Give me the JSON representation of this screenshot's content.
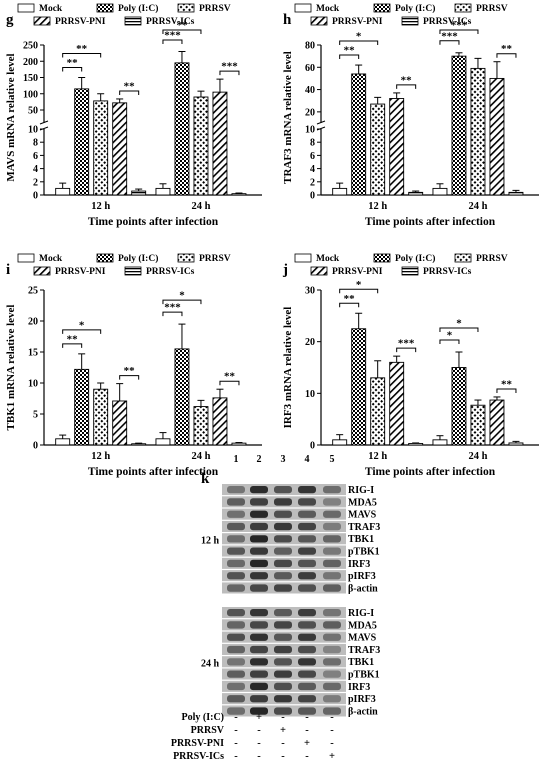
{
  "legend": [
    "Mock",
    "Poly (I:C)",
    "PRRSV",
    "PRRSV-PNI",
    "PRRSV-ICs"
  ],
  "xlabel": "Time points after infection",
  "chart_data": [
    {
      "panel": "g",
      "type": "bar",
      "ylabel": "MAVS mRNA relative level",
      "categories": [
        "12 h",
        "24 h"
      ],
      "broken_axis": true,
      "ylim_lower": [
        0,
        10
      ],
      "ylim_upper": [
        10,
        250
      ],
      "yticks_lower": [
        "0",
        "2",
        "4",
        "6",
        "8",
        "10"
      ],
      "yticks_upper": [
        "50",
        "100",
        "150",
        "200",
        "250"
      ],
      "series": [
        {
          "name": "Mock",
          "values": [
            1.0,
            1.0
          ],
          "errors": [
            0.8,
            0.7
          ]
        },
        {
          "name": "Poly (I:C)",
          "values": [
            115,
            195
          ],
          "errors": [
            35,
            35
          ]
        },
        {
          "name": "PRRSV",
          "values": [
            78,
            90
          ],
          "errors": [
            22,
            18
          ]
        },
        {
          "name": "PRRSV-PNI",
          "values": [
            72,
            105
          ],
          "errors": [
            12,
            40
          ]
        },
        {
          "name": "PRRSV-ICs",
          "values": [
            0.6,
            0.2
          ],
          "errors": [
            0.3,
            0.1
          ]
        }
      ],
      "annotations": [
        {
          "group": 0,
          "label": "**",
          "from": 0,
          "to": 1
        },
        {
          "group": 0,
          "label": "**",
          "from": 0,
          "to": 2
        },
        {
          "group": 0,
          "label": "**",
          "from": 3,
          "to": 4
        },
        {
          "group": 1,
          "label": "***",
          "from": 0,
          "to": 1
        },
        {
          "group": 1,
          "label": "**",
          "from": 0,
          "to": 2
        },
        {
          "group": 1,
          "label": "***",
          "from": 3,
          "to": 4
        }
      ]
    },
    {
      "panel": "h",
      "type": "bar",
      "ylabel": "TRAF3 mRNA relative level",
      "categories": [
        "12 h",
        "24 h"
      ],
      "broken_axis": true,
      "ylim_lower": [
        0,
        10
      ],
      "ylim_upper": [
        10,
        80
      ],
      "yticks_lower": [
        "0",
        "2",
        "4",
        "6",
        "8",
        "10"
      ],
      "yticks_upper": [
        "20",
        "40",
        "60",
        "80"
      ],
      "series": [
        {
          "name": "Mock",
          "values": [
            1.0,
            1.0
          ],
          "errors": [
            0.8,
            0.7
          ]
        },
        {
          "name": "Poly (I:C)",
          "values": [
            54,
            70
          ],
          "errors": [
            8,
            3
          ]
        },
        {
          "name": "PRRSV",
          "values": [
            27,
            59
          ],
          "errors": [
            6,
            9
          ]
        },
        {
          "name": "PRRSV-PNI",
          "values": [
            32,
            50
          ],
          "errors": [
            5,
            15
          ]
        },
        {
          "name": "PRRSV-ICs",
          "values": [
            0.4,
            0.4
          ],
          "errors": [
            0.2,
            0.3
          ]
        }
      ],
      "annotations": [
        {
          "group": 0,
          "label": "**",
          "from": 0,
          "to": 1
        },
        {
          "group": 0,
          "label": "*",
          "from": 0,
          "to": 2
        },
        {
          "group": 0,
          "label": "**",
          "from": 3,
          "to": 4
        },
        {
          "group": 1,
          "label": "***",
          "from": 0,
          "to": 1
        },
        {
          "group": 1,
          "label": "***",
          "from": 0,
          "to": 2
        },
        {
          "group": 1,
          "label": "**",
          "from": 3,
          "to": 4
        }
      ]
    },
    {
      "panel": "i",
      "type": "bar",
      "ylabel": "TBK1 mRNA relative level",
      "categories": [
        "12 h",
        "24 h"
      ],
      "broken_axis": false,
      "ylim": [
        0,
        25
      ],
      "yticks": [
        "0",
        "5",
        "10",
        "15",
        "20",
        "25"
      ],
      "series": [
        {
          "name": "Mock",
          "values": [
            1.0,
            1.0
          ],
          "errors": [
            0.6,
            1.0
          ]
        },
        {
          "name": "Poly (I:C)",
          "values": [
            12.2,
            15.5
          ],
          "errors": [
            2.5,
            4.0
          ]
        },
        {
          "name": "PRRSV",
          "values": [
            9.0,
            6.2
          ],
          "errors": [
            1.0,
            1.0
          ]
        },
        {
          "name": "PRRSV-PNI",
          "values": [
            7.1,
            7.6
          ],
          "errors": [
            2.8,
            1.4
          ]
        },
        {
          "name": "PRRSV-ICs",
          "values": [
            0.2,
            0.3
          ],
          "errors": [
            0.1,
            0.1
          ]
        }
      ],
      "annotations": [
        {
          "group": 0,
          "label": "**",
          "from": 0,
          "to": 1
        },
        {
          "group": 0,
          "label": "*",
          "from": 0,
          "to": 2
        },
        {
          "group": 0,
          "label": "**",
          "from": 3,
          "to": 4
        },
        {
          "group": 1,
          "label": "***",
          "from": 0,
          "to": 1
        },
        {
          "group": 1,
          "label": "*",
          "from": 0,
          "to": 2
        },
        {
          "group": 1,
          "label": "**",
          "from": 3,
          "to": 4
        }
      ]
    },
    {
      "panel": "j",
      "type": "bar",
      "ylabel": "IRF3 mRNA relative level",
      "categories": [
        "12 h",
        "24 h"
      ],
      "broken_axis": false,
      "ylim": [
        0,
        30
      ],
      "yticks": [
        "0",
        "10",
        "20",
        "30"
      ],
      "series": [
        {
          "name": "Mock",
          "values": [
            1.0,
            1.0
          ],
          "errors": [
            1.0,
            0.8
          ]
        },
        {
          "name": "Poly (I:C)",
          "values": [
            22.5,
            15.0
          ],
          "errors": [
            3.0,
            3.0
          ]
        },
        {
          "name": "PRRSV",
          "values": [
            13.0,
            7.7
          ],
          "errors": [
            3.3,
            1.0
          ]
        },
        {
          "name": "PRRSV-PNI",
          "values": [
            16.0,
            8.7
          ],
          "errors": [
            1.2,
            0.6
          ]
        },
        {
          "name": "PRRSV-ICs",
          "values": [
            0.3,
            0.4
          ],
          "errors": [
            0.1,
            0.3
          ]
        }
      ],
      "annotations": [
        {
          "group": 0,
          "label": "**",
          "from": 0,
          "to": 1
        },
        {
          "group": 0,
          "label": "*",
          "from": 0,
          "to": 2
        },
        {
          "group": 0,
          "label": "***",
          "from": 3,
          "to": 4
        },
        {
          "group": 1,
          "label": "*",
          "from": 0,
          "to": 1
        },
        {
          "group": 1,
          "label": "*",
          "from": 0,
          "to": 2
        },
        {
          "group": 1,
          "label": "**",
          "from": 3,
          "to": 4
        }
      ]
    }
  ],
  "blot": {
    "panel": "k",
    "lanes": [
      "1",
      "2",
      "3",
      "4",
      "5"
    ],
    "groups": [
      {
        "label": "12 h",
        "proteins": [
          "RIG-I",
          "MDA5",
          "MAVS",
          "TRAF3",
          "TBK1",
          "pTBK1",
          "IRF3",
          "pIRF3",
          "β-actin"
        ]
      },
      {
        "label": "24 h",
        "proteins": [
          "RIG-I",
          "MDA5",
          "MAVS",
          "TRAF3",
          "TBK1",
          "pTBK1",
          "IRF3",
          "pIRF3",
          "β-actin"
        ]
      }
    ],
    "treatments": [
      {
        "name": "Poly (I:C)",
        "signs": [
          "-",
          "+",
          "-",
          "-",
          "-"
        ]
      },
      {
        "name": "PRRSV",
        "signs": [
          "-",
          "-",
          "+",
          "-",
          "-"
        ]
      },
      {
        "name": "PRRSV-PNI",
        "signs": [
          "-",
          "-",
          "-",
          "+",
          "-"
        ]
      },
      {
        "name": "PRRSV-ICs",
        "signs": [
          "-",
          "-",
          "-",
          "-",
          "+"
        ]
      }
    ]
  }
}
